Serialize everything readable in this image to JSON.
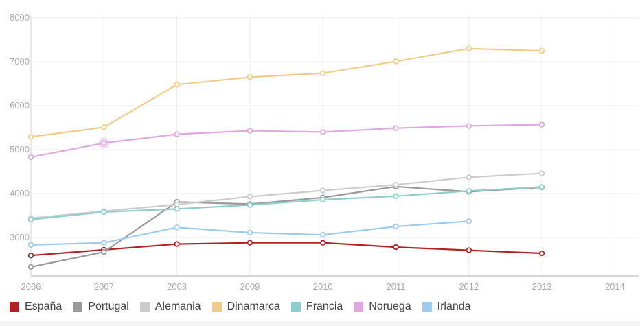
{
  "chart_data": {
    "type": "line",
    "title": "",
    "xlabel": "",
    "ylabel": "",
    "x": [
      2006,
      2007,
      2008,
      2009,
      2010,
      2011,
      2012,
      2013
    ],
    "xlim": [
      2006,
      2014.3
    ],
    "ylim": [
      2100,
      8000
    ],
    "xticks": [
      "2006",
      "2007",
      "2008",
      "2009",
      "2010",
      "2011",
      "2012",
      "2013",
      "2014"
    ],
    "yticks": [
      "3000",
      "4000",
      "5000",
      "6000",
      "7000",
      "8000"
    ],
    "grid": true,
    "legend": "bottom",
    "highlight": {
      "series": "Noruega",
      "x": 2007
    },
    "series": [
      {
        "name": "España",
        "color": "#b22222",
        "values": [
          2590,
          2720,
          2850,
          2880,
          2880,
          2780,
          2710,
          2640
        ]
      },
      {
        "name": "Portugal",
        "color": "#999999",
        "values": [
          2330,
          2670,
          3810,
          3760,
          3910,
          4160,
          4040,
          4140
        ]
      },
      {
        "name": "Alemania",
        "color": "#cccccc",
        "values": [
          3440,
          3600,
          3750,
          3930,
          4070,
          4200,
          4370,
          4460
        ]
      },
      {
        "name": "Dinamarca",
        "color": "#f0cc88",
        "values": [
          5290,
          5510,
          6480,
          6650,
          6740,
          7010,
          7300,
          7250
        ]
      },
      {
        "name": "Francia",
        "color": "#8fcece",
        "values": [
          3410,
          3580,
          3650,
          3740,
          3860,
          3940,
          4060,
          4150
        ]
      },
      {
        "name": "Noruega",
        "color": "#e0a8e0",
        "values": [
          4830,
          5150,
          5350,
          5430,
          5400,
          5490,
          5540,
          5570
        ]
      },
      {
        "name": "Irlanda",
        "color": "#9dcbee",
        "values": [
          2830,
          2880,
          3230,
          3110,
          3060,
          3250,
          3370,
          null
        ]
      }
    ]
  }
}
